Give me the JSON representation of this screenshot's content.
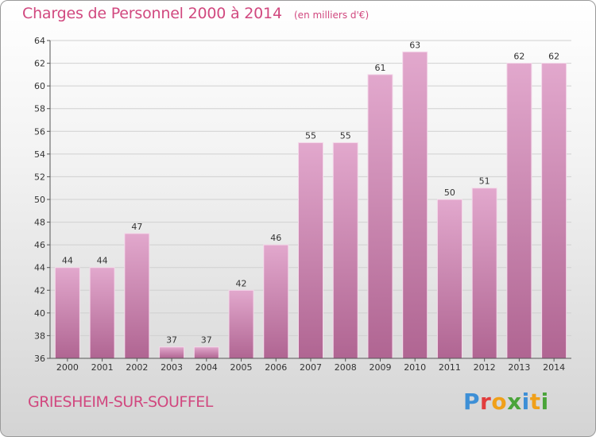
{
  "title": "Charges de Personnel 2000 à 2014",
  "subtitle": "(en milliers d'€)",
  "commune": "GRIESHEIM-SUR-SOUFFEL",
  "logo": {
    "letters": [
      {
        "char": "P",
        "color": "#3d8fd6"
      },
      {
        "char": "r",
        "color": "#e23c3c"
      },
      {
        "char": "o",
        "color": "#f0a019"
      },
      {
        "char": "x",
        "color": "#4aa43a"
      },
      {
        "char": "i",
        "color": "#3d8fd6"
      },
      {
        "char": "t",
        "color": "#f0a019"
      },
      {
        "char": "i",
        "color": "#4aa43a"
      }
    ]
  },
  "colors": {
    "accent": "#d1487f",
    "bar_top": "#e2a8cd",
    "bar_bottom": "#b06592",
    "bar_edge": "#f4d9ea",
    "grid": "#d0d0d0",
    "axis_text": "#333333"
  },
  "chart_data": {
    "type": "bar",
    "categories": [
      "2000",
      "2001",
      "2002",
      "2003",
      "2004",
      "2005",
      "2006",
      "2007",
      "2008",
      "2009",
      "2010",
      "2011",
      "2012",
      "2013",
      "2014"
    ],
    "values": [
      44,
      44,
      47,
      37,
      37,
      42,
      46,
      55,
      55,
      61,
      63,
      50,
      51,
      62,
      62
    ],
    "ylim": [
      36,
      64
    ],
    "yticks": [
      36,
      38,
      40,
      42,
      44,
      46,
      48,
      50,
      52,
      54,
      56,
      58,
      60,
      62,
      64
    ],
    "grid": true,
    "data_labels": true
  }
}
